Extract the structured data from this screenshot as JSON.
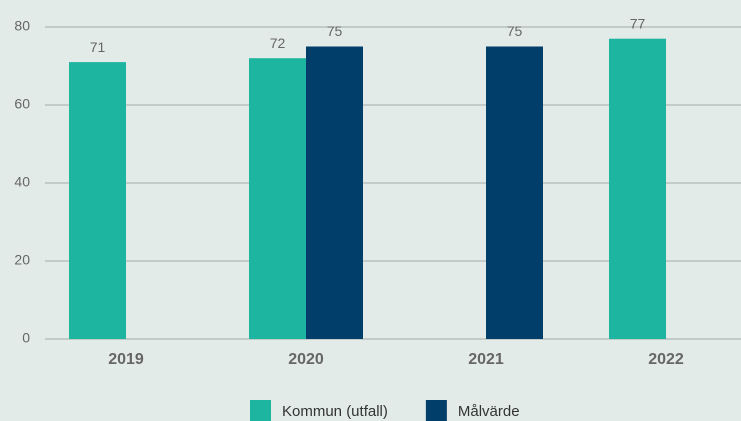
{
  "chart_data": {
    "type": "bar",
    "categories": [
      "2019",
      "2020",
      "2021",
      "2022"
    ],
    "series": [
      {
        "name": "Kommun (utfall)",
        "color": "#1db5a0",
        "values": [
          71,
          72,
          null,
          77
        ]
      },
      {
        "name": "Målvärde",
        "color": "#023e6a",
        "values": [
          null,
          75,
          75,
          null
        ]
      }
    ],
    "ylim": [
      0,
      80
    ],
    "yticks": [
      0,
      20,
      40,
      60,
      80
    ],
    "grid": true,
    "legend": "bottom"
  }
}
